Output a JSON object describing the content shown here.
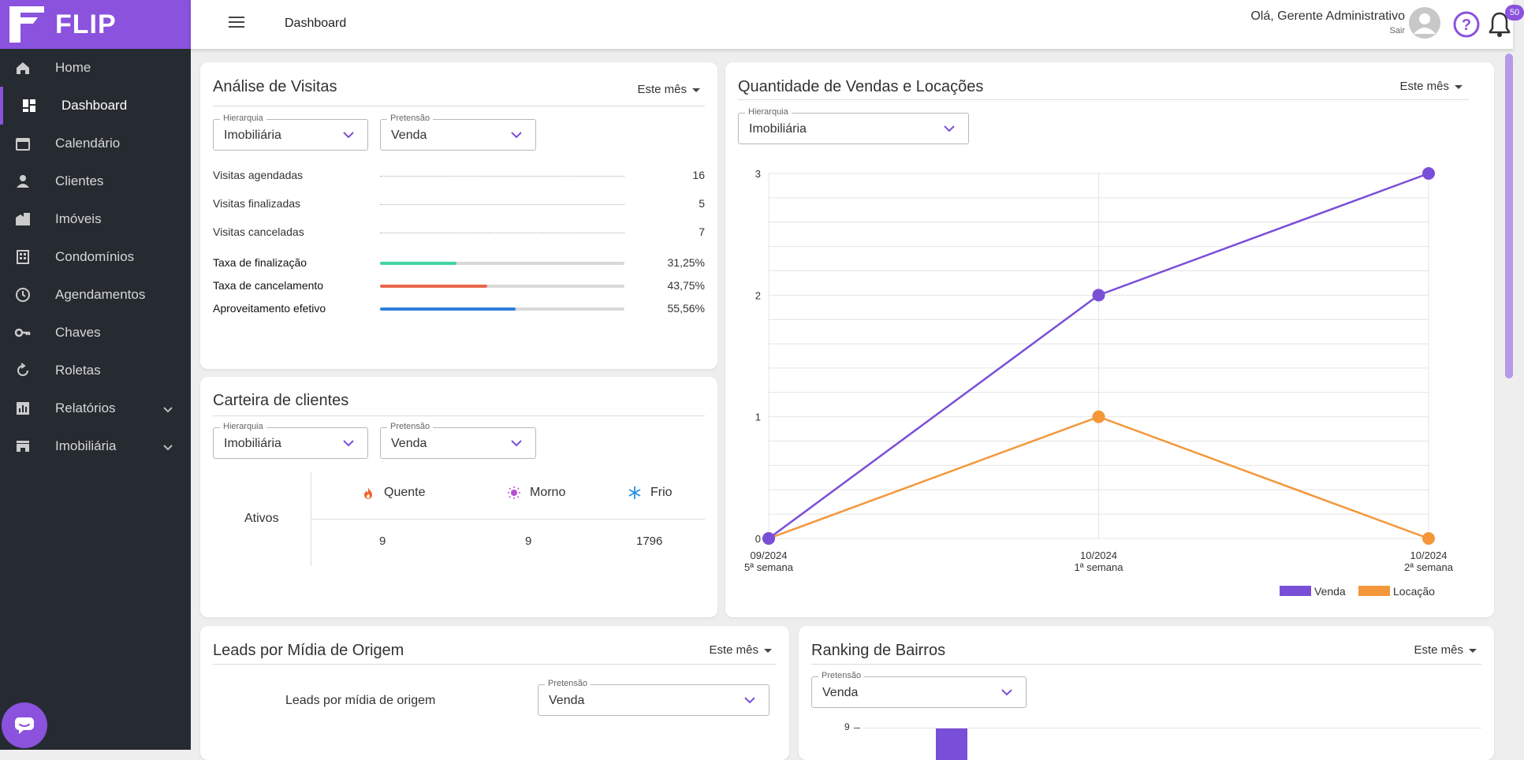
{
  "app": {
    "brand": "FLIP",
    "accent": "#8a52dd"
  },
  "sidebar": {
    "items": [
      {
        "label": "Home",
        "icon": "home-icon",
        "active": false,
        "expandable": false
      },
      {
        "label": "Dashboard",
        "icon": "dashboard-icon",
        "active": true,
        "expandable": false
      },
      {
        "label": "Calendário",
        "icon": "calendar-icon",
        "active": false,
        "expandable": false
      },
      {
        "label": "Clientes",
        "icon": "person-icon",
        "active": false,
        "expandable": false
      },
      {
        "label": "Imóveis",
        "icon": "building-icon",
        "active": false,
        "expandable": false
      },
      {
        "label": "Condomínios",
        "icon": "apartment-icon",
        "active": false,
        "expandable": false
      },
      {
        "label": "Agendamentos",
        "icon": "clock-icon",
        "active": false,
        "expandable": false
      },
      {
        "label": "Chaves",
        "icon": "key-icon",
        "active": false,
        "expandable": false
      },
      {
        "label": "Roletas",
        "icon": "rotate-icon",
        "active": false,
        "expandable": false
      },
      {
        "label": "Relatórios",
        "icon": "report-icon",
        "active": false,
        "expandable": true
      },
      {
        "label": "Imobiliária",
        "icon": "store-icon",
        "active": false,
        "expandable": true
      }
    ]
  },
  "header": {
    "title": "Dashboard",
    "greeting": "Olá, Gerente Administrativo",
    "logout": "Sair",
    "notifications": "50"
  },
  "visits": {
    "title": "Análise de Visitas",
    "period": "Este mês",
    "hierarchy": {
      "label": "Hierarquia",
      "value": "Imobiliária"
    },
    "intent": {
      "label": "Pretensão",
      "value": "Venda"
    },
    "stats": [
      {
        "label": "Visitas agendadas",
        "value": "16"
      },
      {
        "label": "Visitas finalizadas",
        "value": "5"
      },
      {
        "label": "Visitas canceladas",
        "value": "7"
      }
    ],
    "rates": [
      {
        "label": "Taxa de finalização",
        "value": "31,25%",
        "pct": 31.25,
        "color": "#3fd4a2"
      },
      {
        "label": "Taxa de cancelamento",
        "value": "43,75%",
        "pct": 43.75,
        "color": "#e8674a"
      },
      {
        "label": "Aproveitamento efetivo",
        "value": "55,56%",
        "pct": 55.56,
        "color": "#2f7fd8"
      }
    ]
  },
  "portfolio": {
    "title": "Carteira de clientes",
    "hierarchy": {
      "label": "Hierarquia",
      "value": "Imobiliária"
    },
    "intent": {
      "label": "Pretensão",
      "value": "Venda"
    },
    "row_label": "Ativos",
    "columns": [
      {
        "label": "Quente",
        "icon": "fire-icon",
        "color": "#f0622e",
        "value": "9"
      },
      {
        "label": "Morno",
        "icon": "sun-icon",
        "color": "#b44fd0",
        "value": "9"
      },
      {
        "label": "Frio",
        "icon": "snowflake-icon",
        "color": "#2a8fe0",
        "value": "1796"
      }
    ]
  },
  "sales": {
    "title": "Quantidade de Vendas e Locações",
    "period": "Este mês",
    "hierarchy": {
      "label": "Hierarquia",
      "value": "Imobiliária"
    }
  },
  "leads": {
    "title": "Leads por Mídia de Origem",
    "period": "Este mês",
    "chart_label": "Leads por mídia de origem",
    "intent": {
      "label": "Pretensão",
      "value": "Venda"
    }
  },
  "ranking": {
    "title": "Ranking de Bairros",
    "period": "Este mês",
    "intent": {
      "label": "Pretensão",
      "value": "Venda"
    },
    "y_tick": "9"
  },
  "chart_data": [
    {
      "type": "line",
      "title": "Quantidade de Vendas e Locações",
      "categories": [
        [
          "09/2024",
          "5ª semana"
        ],
        [
          "10/2024",
          "1ª semana"
        ],
        [
          "10/2024",
          "2ª semana"
        ]
      ],
      "series": [
        {
          "name": "Venda",
          "color": "#7a4fd8",
          "values": [
            0,
            2,
            3
          ]
        },
        {
          "name": "Locação",
          "color": "#f3973a",
          "values": [
            0,
            1,
            0
          ]
        }
      ],
      "ylim": [
        0,
        3
      ],
      "yticks": [
        "0",
        "1",
        "2",
        "3"
      ],
      "legend": "bottom-right"
    },
    {
      "type": "bar",
      "title": "Ranking de Bairros",
      "yticks": [
        "9"
      ],
      "values": [
        9
      ],
      "color": "#7a4fd8"
    }
  ]
}
